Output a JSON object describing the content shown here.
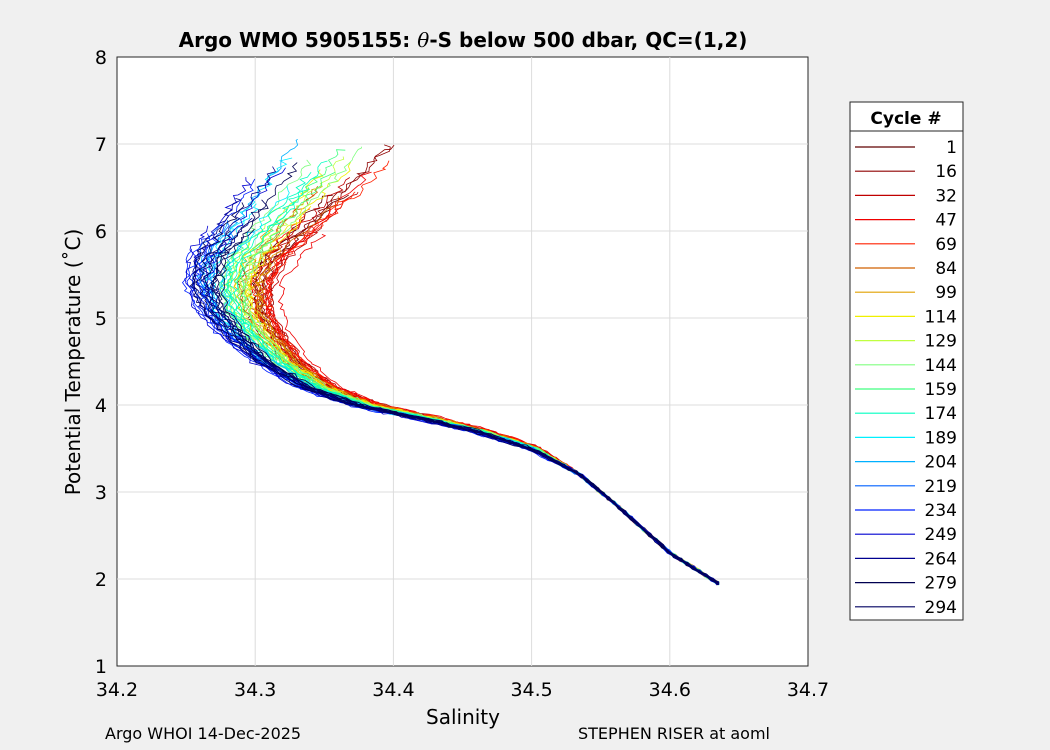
{
  "chart_data": {
    "type": "line",
    "title_prefix": "Argo WMO 5905155: ",
    "title_theta": "θ",
    "title_suffix": "-S below 500 dbar,  QC=(1,2)",
    "xlabel": "Salinity",
    "ylabel": "Potential Temperature (˚C)",
    "xlim": [
      34.2,
      34.7
    ],
    "ylim": [
      1,
      8
    ],
    "xticks": [
      34.2,
      34.3,
      34.4,
      34.5,
      34.6,
      34.7
    ],
    "yticks": [
      1,
      2,
      3,
      4,
      5,
      6,
      7,
      8
    ],
    "grid": true,
    "legend_title": "Cycle #",
    "legend_position": "right",
    "series": [
      {
        "name": "1",
        "color": "#600000",
        "shift": 0.05
      },
      {
        "name": "16",
        "color": "#8f0000",
        "shift": 0.055
      },
      {
        "name": "32",
        "color": "#c00000",
        "shift": 0.06
      },
      {
        "name": "47",
        "color": "#ef0000",
        "shift": 0.075
      },
      {
        "name": "69",
        "color": "#ff2000",
        "shift": 0.06
      },
      {
        "name": "84",
        "color": "#d06000",
        "shift": 0.045
      },
      {
        "name": "99",
        "color": "#e0a000",
        "shift": 0.04
      },
      {
        "name": "114",
        "color": "#f0f000",
        "shift": 0.035
      },
      {
        "name": "129",
        "color": "#c0ff40",
        "shift": 0.03
      },
      {
        "name": "144",
        "color": "#80ff80",
        "shift": 0.025
      },
      {
        "name": "159",
        "color": "#40ff80",
        "shift": 0.02
      },
      {
        "name": "174",
        "color": "#00ffc0",
        "shift": 0.01
      },
      {
        "name": "189",
        "color": "#00f0ff",
        "shift": 0.0
      },
      {
        "name": "204",
        "color": "#00b0ff",
        "shift": -0.005
      },
      {
        "name": "219",
        "color": "#0060ff",
        "shift": -0.012
      },
      {
        "name": "234",
        "color": "#0020ff",
        "shift": -0.02
      },
      {
        "name": "249",
        "color": "#0000d0",
        "shift": -0.022
      },
      {
        "name": "264",
        "color": "#000090",
        "shift": -0.015
      },
      {
        "name": "279",
        "color": "#000050",
        "shift": -0.005
      },
      {
        "name": "294",
        "color": "#000060",
        "shift": -0.01
      }
    ],
    "base_profile": {
      "theta": [
        1.95,
        2.3,
        2.8,
        3.2,
        3.5,
        3.7,
        3.85,
        4.0,
        4.2,
        4.5,
        4.8,
        5.1,
        5.4,
        5.7,
        6.0,
        6.3,
        6.6,
        6.9,
        7.1
      ],
      "salinity": [
        34.635,
        34.6,
        34.565,
        34.535,
        34.5,
        34.46,
        34.42,
        34.375,
        34.34,
        34.31,
        34.29,
        34.275,
        34.27,
        34.275,
        34.29,
        34.305,
        34.32,
        34.335,
        34.345
      ]
    }
  },
  "footer": {
    "left": "Argo WHOI 14-Dec-2025",
    "right": "STEPHEN RISER at aoml"
  }
}
